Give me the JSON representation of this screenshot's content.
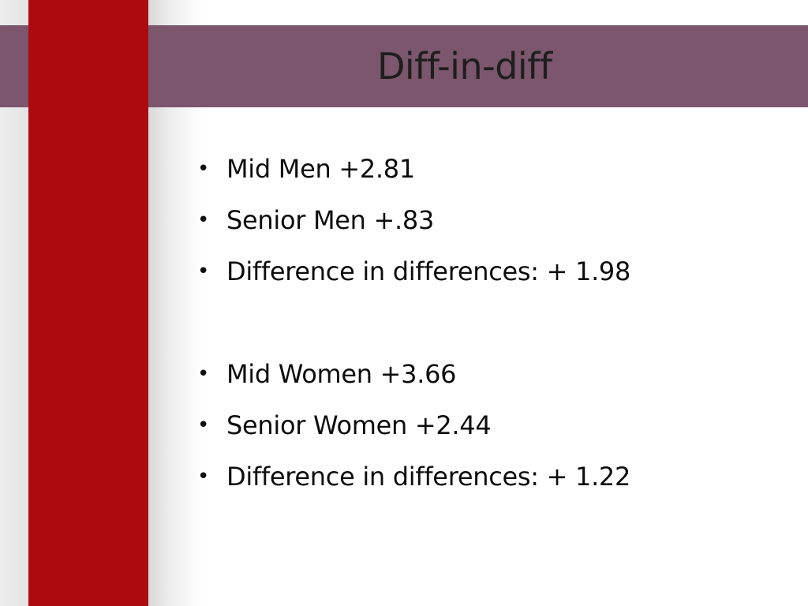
{
  "slide": {
    "title": "Diff-in-diff",
    "bullet_glyph": "•",
    "bullets": [
      "Mid Men +2.81",
      "Senior Men +.83",
      "Difference in differences: + 1.98",
      "Mid Women +3.66",
      "Senior Women +2.44",
      "Difference in differences: + 1.22"
    ]
  },
  "colors": {
    "title_band": "#7b566c",
    "red_stripe": "#ad0a10",
    "background": "#ffffff",
    "text": "#0d0d0d"
  }
}
